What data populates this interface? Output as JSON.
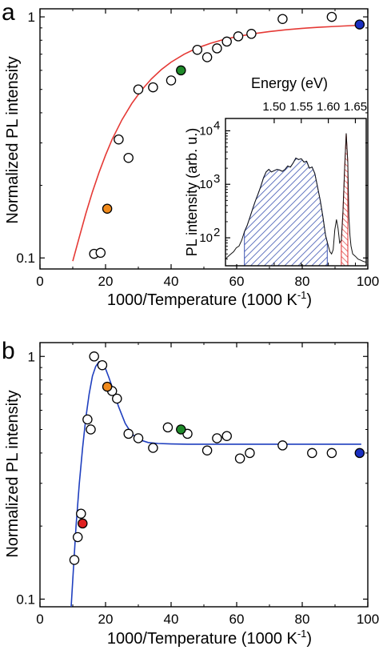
{
  "panels": {
    "a": {
      "label": "a",
      "ylabel": "Normalized PL intensity",
      "xlabel_main": "1000/Temperature (1000 K",
      "xlabel_sup": "-1",
      "xlabel_end": ")"
    },
    "b": {
      "label": "b",
      "ylabel": "Normalized PL intensity",
      "xlabel_main": "1000/Temperature (1000 K",
      "xlabel_sup": "-1",
      "xlabel_end": ")"
    },
    "inset": {
      "title": "Energy (eV)",
      "ylabel": "PL intensity (arb. u.)"
    }
  },
  "colors": {
    "fit_a": "#e53935",
    "fit_b": "#1f3fbf",
    "orange": "#f08a1c",
    "green": "#1f8a2a",
    "blue": "#1a2fc0",
    "red": "#e02020",
    "hatch_blue": "#3a52b0",
    "hatch_red": "#e03030"
  },
  "chart_data": [
    {
      "type": "scatter",
      "panel": "a",
      "xlabel": "1000/Temperature (1000 K-1)",
      "ylabel": "Normalized PL intensity",
      "xlim": [
        0,
        100
      ],
      "ylim": [
        0.09,
        1.08
      ],
      "yscale": "log",
      "x_ticks": [
        0,
        20,
        40,
        60,
        80,
        100
      ],
      "y_ticks": [
        {
          "v": 0.1,
          "label": "0.1"
        },
        {
          "v": 1,
          "label": "1"
        }
      ],
      "series": [
        {
          "marker": "open",
          "points": [
            [
              16.5,
              0.104
            ],
            [
              18.5,
              0.105
            ],
            [
              24,
              0.31
            ],
            [
              27,
              0.26
            ],
            [
              30,
              0.5
            ],
            [
              34.5,
              0.51
            ],
            [
              40,
              0.545
            ],
            [
              48,
              0.73
            ],
            [
              51,
              0.68
            ],
            [
              54,
              0.74
            ],
            [
              57,
              0.79
            ],
            [
              60.5,
              0.83
            ],
            [
              64.5,
              0.85
            ],
            [
              74,
              0.98
            ],
            [
              89,
              1.0
            ]
          ]
        },
        {
          "marker": "filled",
          "color": "orange",
          "points": [
            [
              20.5,
              0.16
            ]
          ]
        },
        {
          "marker": "filled",
          "color": "green",
          "points": [
            [
              43,
              0.6
            ]
          ]
        },
        {
          "marker": "filled",
          "color": "blue",
          "points": [
            [
              97.5,
              0.93
            ]
          ]
        }
      ],
      "fit": {
        "color": "fit_a",
        "x": [
          10,
          12,
          14,
          16,
          18,
          20,
          22,
          25,
          28,
          31,
          34,
          37,
          40,
          44,
          48,
          52,
          56,
          60,
          65,
          70,
          75,
          80,
          85,
          90,
          95,
          98
        ],
        "y": [
          0.097,
          0.122,
          0.153,
          0.188,
          0.226,
          0.267,
          0.31,
          0.374,
          0.437,
          0.497,
          0.553,
          0.604,
          0.649,
          0.7,
          0.743,
          0.777,
          0.805,
          0.828,
          0.851,
          0.869,
          0.884,
          0.896,
          0.905,
          0.913,
          0.92,
          0.923
        ]
      }
    },
    {
      "type": "area",
      "panel": "inset",
      "x_title": "Energy (eV)",
      "ylabel": "PL intensity (arb. u.)",
      "xlim": [
        1.41,
        1.67
      ],
      "ylim": [
        30,
        17000
      ],
      "yscale": "log",
      "x_ticks": [
        {
          "v": 1.5,
          "label": "1.50"
        },
        {
          "v": 1.55,
          "label": "1.55"
        },
        {
          "v": 1.6,
          "label": "1.60"
        },
        {
          "v": 1.65,
          "label": "1.65"
        }
      ],
      "y_ticks": [
        {
          "v": 100,
          "label": "10",
          "sup": "2"
        },
        {
          "v": 1000,
          "label": "10",
          "sup": "3"
        },
        {
          "v": 10000,
          "label": "10",
          "sup": "4"
        }
      ],
      "spectrum": {
        "x": [
          1.41,
          1.415,
          1.42,
          1.425,
          1.43,
          1.435,
          1.44,
          1.445,
          1.45,
          1.455,
          1.46,
          1.465,
          1.47,
          1.475,
          1.48,
          1.485,
          1.49,
          1.495,
          1.5,
          1.505,
          1.51,
          1.515,
          1.52,
          1.525,
          1.53,
          1.535,
          1.54,
          1.545,
          1.55,
          1.555,
          1.56,
          1.565,
          1.57,
          1.575,
          1.58,
          1.585,
          1.59,
          1.595,
          1.6,
          1.603,
          1.606,
          1.609,
          1.612,
          1.615,
          1.618,
          1.621,
          1.624,
          1.627,
          1.63,
          1.633,
          1.636,
          1.638,
          1.64,
          1.642,
          1.645,
          1.65,
          1.655,
          1.66,
          1.665,
          1.67
        ],
        "y": [
          40,
          45,
          50,
          55,
          65,
          70,
          90,
          130,
          170,
          240,
          340,
          480,
          650,
          900,
          1300,
          1700,
          1900,
          1700,
          1800,
          1900,
          1850,
          1750,
          1900,
          2200,
          2100,
          2500,
          3100,
          2900,
          3000,
          2600,
          2700,
          2000,
          2100,
          1600,
          900,
          500,
          250,
          110,
          70,
          55,
          50,
          60,
          140,
          220,
          150,
          80,
          90,
          300,
          1800,
          9000,
          2500,
          250,
          110,
          70,
          50,
          45,
          40,
          38,
          36,
          35
        ]
      },
      "hatched_regions": [
        {
          "color": "hatch_blue",
          "x": [
            1.445,
            1.598
          ]
        },
        {
          "color": "hatch_red",
          "x": [
            1.624,
            1.636
          ]
        }
      ]
    },
    {
      "type": "scatter",
      "panel": "b",
      "xlabel": "1000/Temperature (1000 K-1)",
      "ylabel": "Normalized PL intensity",
      "xlim": [
        0,
        100
      ],
      "ylim": [
        0.093,
        1.14
      ],
      "yscale": "log",
      "x_ticks": [
        0,
        20,
        40,
        60,
        80,
        100
      ],
      "y_ticks": [
        {
          "v": 0.1,
          "label": "0.1"
        },
        {
          "v": 1,
          "label": "1"
        }
      ],
      "series": [
        {
          "marker": "open",
          "points": [
            [
              10.5,
              0.145
            ],
            [
              11.5,
              0.18
            ],
            [
              12.5,
              0.225
            ],
            [
              14.5,
              0.55
            ],
            [
              15.5,
              0.5
            ],
            [
              16.5,
              1.0
            ],
            [
              19,
              0.92
            ],
            [
              22,
              0.72
            ],
            [
              23.5,
              0.67
            ],
            [
              27,
              0.48
            ],
            [
              30,
              0.46
            ],
            [
              34.5,
              0.42
            ],
            [
              39,
              0.51
            ],
            [
              45,
              0.48
            ],
            [
              51,
              0.41
            ],
            [
              54,
              0.46
            ],
            [
              57,
              0.47
            ],
            [
              61,
              0.38
            ],
            [
              64,
              0.4
            ],
            [
              74,
              0.43
            ],
            [
              83,
              0.4
            ],
            [
              89,
              0.4
            ]
          ]
        },
        {
          "marker": "filled",
          "color": "red",
          "points": [
            [
              13,
              0.205
            ]
          ]
        },
        {
          "marker": "filled",
          "color": "orange",
          "points": [
            [
              20.5,
              0.75
            ]
          ]
        },
        {
          "marker": "filled",
          "color": "green",
          "points": [
            [
              43,
              0.5
            ]
          ]
        },
        {
          "marker": "filled",
          "color": "blue",
          "points": [
            [
              97.5,
              0.4
            ]
          ]
        }
      ],
      "fit": {
        "color": "fit_b",
        "x": [
          9.5,
          10,
          11,
          12,
          13,
          14,
          15,
          16,
          17,
          18,
          19,
          20,
          21,
          22,
          23,
          24,
          26,
          28,
          30,
          33,
          36,
          40,
          45,
          50,
          60,
          70,
          80,
          90,
          98
        ],
        "y": [
          0.093,
          0.12,
          0.2,
          0.3,
          0.42,
          0.56,
          0.7,
          0.83,
          0.91,
          0.95,
          0.94,
          0.89,
          0.82,
          0.75,
          0.68,
          0.62,
          0.53,
          0.48,
          0.455,
          0.442,
          0.438,
          0.436,
          0.435,
          0.435,
          0.435,
          0.435,
          0.435,
          0.435,
          0.435
        ]
      }
    }
  ]
}
